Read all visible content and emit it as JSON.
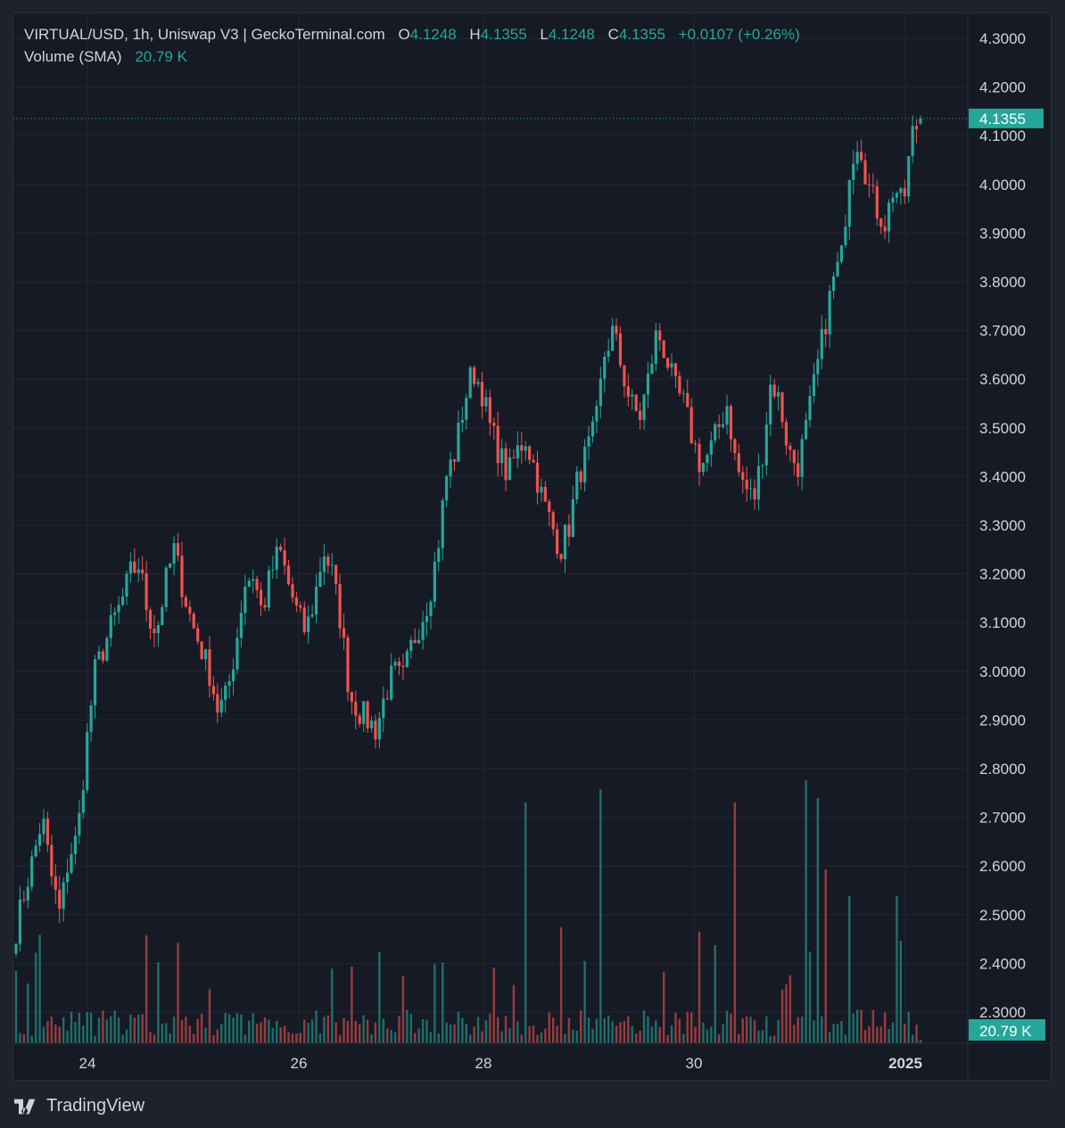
{
  "legend": {
    "symbol": "VIRTUAL/USD, 1h, Uniswap V3 | GeckoTerminal.com",
    "open_key": "O",
    "open": "4.1248",
    "high_key": "H",
    "high": "4.1355",
    "low_key": "L",
    "low": "4.1248",
    "close_key": "C",
    "close": "4.1355",
    "change": "+0.0107 (+0.26%)",
    "volume_label": "Volume (SMA)",
    "volume_value": "20.79 K"
  },
  "brand": "TradingView",
  "colors": {
    "up": "#26a69a",
    "down": "#ef5350",
    "background": "#161a25",
    "grid": "#232734",
    "text": "#d1d4dc"
  },
  "chart_data": {
    "type": "candlestick",
    "title": "VIRTUAL/USD, 1h, Uniswap V3 | GeckoTerminal.com",
    "price_ticks": [
      "4.3000",
      "4.2000",
      "4.1000",
      "4.0000",
      "3.9000",
      "3.8000",
      "3.7000",
      "3.6000",
      "3.5000",
      "3.4000",
      "3.3000",
      "3.2000",
      "3.1000",
      "3.0000",
      "2.9000",
      "2.8000",
      "2.7000",
      "2.6000",
      "2.5000",
      "2.4000",
      "2.3000"
    ],
    "ylim": [
      2.25,
      4.35
    ],
    "x_ticks": [
      "24",
      "26",
      "28",
      "30",
      "2025"
    ],
    "last_price": "4.1355",
    "last_volume": "20.79 K",
    "series": [
      {
        "name": "VIRTUAL/USD",
        "anchor_closes": [
          2.47,
          2.55,
          2.62,
          2.7,
          2.58,
          2.5,
          2.62,
          2.66,
          2.85,
          3.0,
          3.05,
          3.1,
          3.14,
          3.2,
          3.22,
          3.12,
          3.08,
          3.18,
          3.25,
          3.17,
          3.1,
          3.05,
          3.0,
          2.92,
          2.95,
          3.05,
          3.18,
          3.2,
          3.12,
          3.2,
          3.25,
          3.18,
          3.12,
          3.08,
          3.15,
          3.25,
          3.2,
          3.1,
          2.95,
          2.92,
          2.9,
          2.88,
          2.95,
          3.0,
          2.98,
          3.05,
          3.1,
          3.15,
          3.25,
          3.4,
          3.45,
          3.55,
          3.62,
          3.58,
          3.5,
          3.45,
          3.4,
          3.45,
          3.48,
          3.42,
          3.35,
          3.3,
          3.25,
          3.3,
          3.4,
          3.45,
          3.5,
          3.65,
          3.7,
          3.62,
          3.55,
          3.52,
          3.6,
          3.7,
          3.65,
          3.58,
          3.55,
          3.48,
          3.42,
          3.45,
          3.5,
          3.55,
          3.42,
          3.38,
          3.35,
          3.45,
          3.6,
          3.55,
          3.45,
          3.42,
          3.5,
          3.6,
          3.7,
          3.8,
          3.85,
          4.05,
          4.1,
          4.0,
          3.95,
          3.92,
          4.0,
          3.95,
          4.1,
          4.1355
        ]
      },
      {
        "name": "Volume (SMA)",
        "value_last": "20.79 K"
      }
    ]
  }
}
